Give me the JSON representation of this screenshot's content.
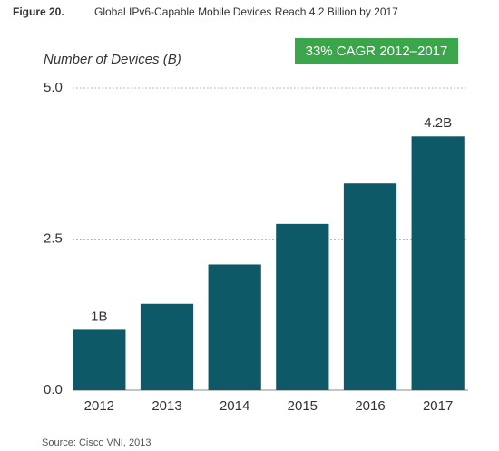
{
  "chart_data": {
    "type": "bar",
    "figure_label": "Figure 20.",
    "title": "Global IPv6-Capable Mobile Devices Reach 4.2 Billion by 2017",
    "y_label": "Number of Devices (B)",
    "annotation": "33% CAGR 2012–2017",
    "annotation_color": "#3aa54a",
    "categories": [
      "2012",
      "2013",
      "2014",
      "2015",
      "2016",
      "2017"
    ],
    "values": [
      1,
      1.43,
      2.08,
      2.75,
      3.42,
      4.2
    ],
    "value_labels": [
      "1B",
      null,
      null,
      null,
      null,
      "4.2B"
    ],
    "color": "#0e5968",
    "ylim": [
      0,
      5
    ],
    "yticks": [
      {
        "value": 0,
        "label": "0.0"
      },
      {
        "value": 2.5,
        "label": "2.5"
      },
      {
        "value": 5,
        "label": "5.0"
      }
    ],
    "grid": true,
    "source": "Source: Cisco VNI, 2013"
  }
}
